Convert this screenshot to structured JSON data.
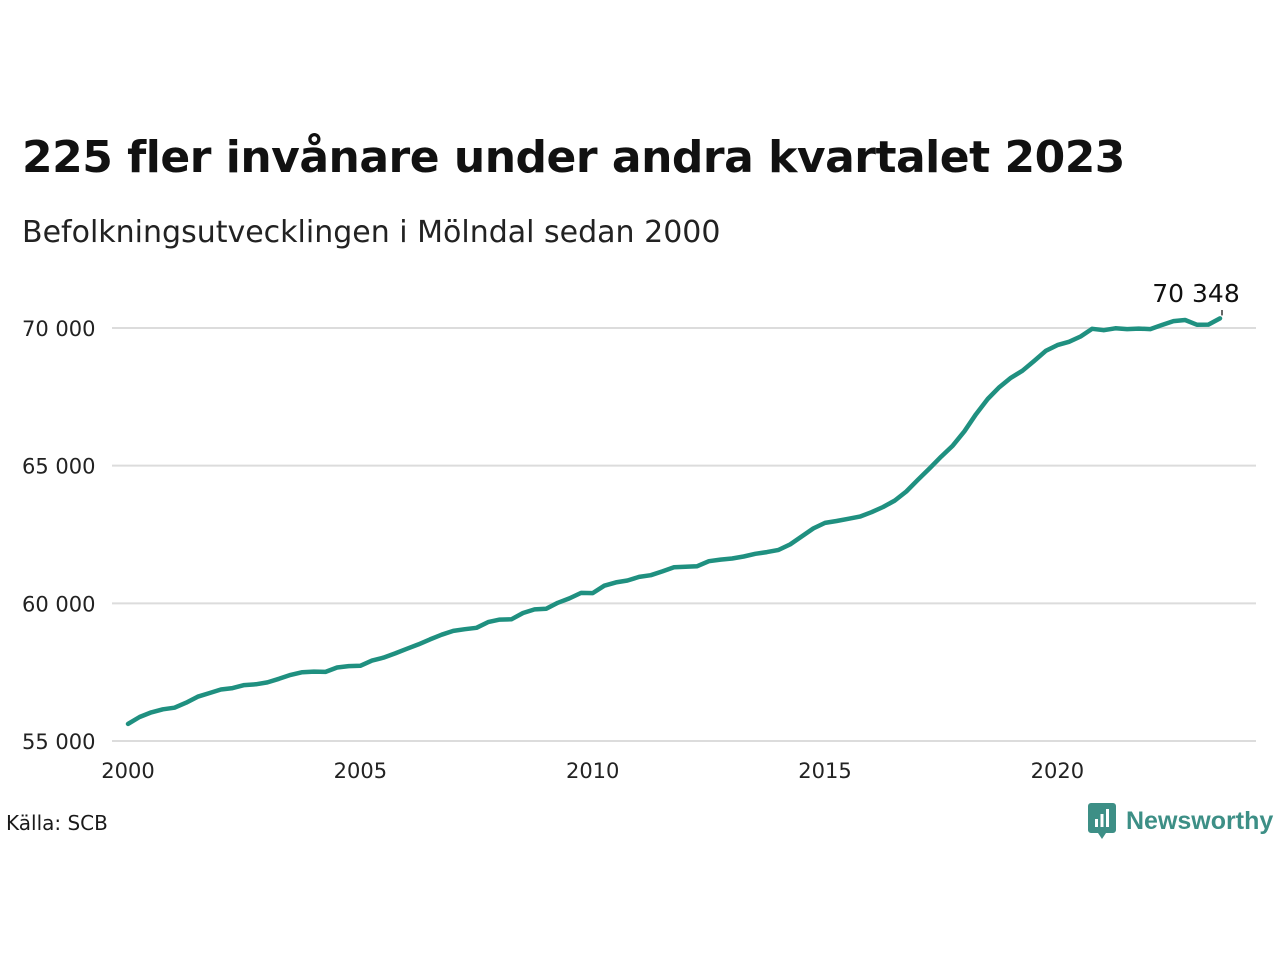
{
  "title": "225 fler invånare under andra kvartalet 2023",
  "subtitle": "Befolkningsutvecklingen i Mölndal sedan 2000",
  "source": "Källa: SCB",
  "brand": {
    "name": "Newsworthy",
    "icon": "newsworthy-logo-icon",
    "color": "#3d8f86"
  },
  "chart_data": {
    "type": "line",
    "x_axis": {
      "ticks": [
        2000,
        2005,
        2010,
        2015,
        2020
      ],
      "tick_labels": [
        "2000",
        "2005",
        "2010",
        "2015",
        "2020"
      ],
      "range": [
        2000,
        2024.4
      ]
    },
    "y_axis": {
      "ticks": [
        55000,
        60000,
        65000,
        70000
      ],
      "tick_labels": [
        "55 000",
        "60 000",
        "65 000",
        "70 000"
      ],
      "range": [
        55000,
        71000
      ]
    },
    "grid": "horizontal",
    "line_color": "#1f9080",
    "annotation": {
      "label": "70 348",
      "x": 2023.25,
      "y": 70348
    },
    "series": [
      {
        "values": [
          [
            2000.0,
            55620
          ],
          [
            2000.25,
            55870
          ],
          [
            2000.5,
            56040
          ],
          [
            2000.75,
            56150
          ],
          [
            2001.0,
            56210
          ],
          [
            2001.25,
            56390
          ],
          [
            2001.5,
            56610
          ],
          [
            2001.75,
            56740
          ],
          [
            2002.0,
            56870
          ],
          [
            2002.25,
            56920
          ],
          [
            2002.5,
            57030
          ],
          [
            2002.75,
            57060
          ],
          [
            2003.0,
            57130
          ],
          [
            2003.25,
            57260
          ],
          [
            2003.5,
            57400
          ],
          [
            2003.75,
            57500
          ],
          [
            2004.0,
            57520
          ],
          [
            2004.25,
            57510
          ],
          [
            2004.5,
            57670
          ],
          [
            2004.75,
            57720
          ],
          [
            2005.0,
            57730
          ],
          [
            2005.25,
            57920
          ],
          [
            2005.5,
            58030
          ],
          [
            2005.75,
            58180
          ],
          [
            2006.0,
            58350
          ],
          [
            2006.25,
            58510
          ],
          [
            2006.5,
            58690
          ],
          [
            2006.75,
            58860
          ],
          [
            2007.0,
            59000
          ],
          [
            2007.25,
            59060
          ],
          [
            2007.5,
            59110
          ],
          [
            2007.75,
            59320
          ],
          [
            2008.0,
            59410
          ],
          [
            2008.25,
            59420
          ],
          [
            2008.5,
            59650
          ],
          [
            2008.75,
            59780
          ],
          [
            2009.0,
            59800
          ],
          [
            2009.25,
            60020
          ],
          [
            2009.5,
            60180
          ],
          [
            2009.75,
            60380
          ],
          [
            2010.0,
            60370
          ],
          [
            2010.25,
            60640
          ],
          [
            2010.5,
            60760
          ],
          [
            2010.75,
            60830
          ],
          [
            2011.0,
            60960
          ],
          [
            2011.25,
            61020
          ],
          [
            2011.5,
            61160
          ],
          [
            2011.75,
            61310
          ],
          [
            2012.0,
            61330
          ],
          [
            2012.25,
            61350
          ],
          [
            2012.5,
            61530
          ],
          [
            2012.75,
            61590
          ],
          [
            2013.0,
            61630
          ],
          [
            2013.25,
            61700
          ],
          [
            2013.5,
            61800
          ],
          [
            2013.75,
            61860
          ],
          [
            2014.0,
            61940
          ],
          [
            2014.25,
            62140
          ],
          [
            2014.5,
            62430
          ],
          [
            2014.75,
            62720
          ],
          [
            2015.0,
            62920
          ],
          [
            2015.25,
            62990
          ],
          [
            2015.5,
            63070
          ],
          [
            2015.75,
            63150
          ],
          [
            2016.0,
            63310
          ],
          [
            2016.25,
            63500
          ],
          [
            2016.5,
            63730
          ],
          [
            2016.75,
            64060
          ],
          [
            2017.0,
            64490
          ],
          [
            2017.25,
            64900
          ],
          [
            2017.5,
            65330
          ],
          [
            2017.75,
            65730
          ],
          [
            2018.0,
            66250
          ],
          [
            2018.25,
            66870
          ],
          [
            2018.5,
            67420
          ],
          [
            2018.75,
            67850
          ],
          [
            2019.0,
            68190
          ],
          [
            2019.25,
            68450
          ],
          [
            2019.5,
            68800
          ],
          [
            2019.75,
            69170
          ],
          [
            2020.0,
            69380
          ],
          [
            2020.25,
            69500
          ],
          [
            2020.5,
            69690
          ],
          [
            2020.75,
            69970
          ],
          [
            2021.0,
            69920
          ],
          [
            2021.25,
            69990
          ],
          [
            2021.5,
            69960
          ],
          [
            2021.75,
            69980
          ],
          [
            2022.0,
            69960
          ],
          [
            2022.25,
            70110
          ],
          [
            2022.5,
            70250
          ],
          [
            2022.75,
            70290
          ],
          [
            2023.0,
            70120
          ],
          [
            2023.25,
            70123
          ],
          [
            2023.5,
            70348
          ]
        ]
      }
    ]
  }
}
